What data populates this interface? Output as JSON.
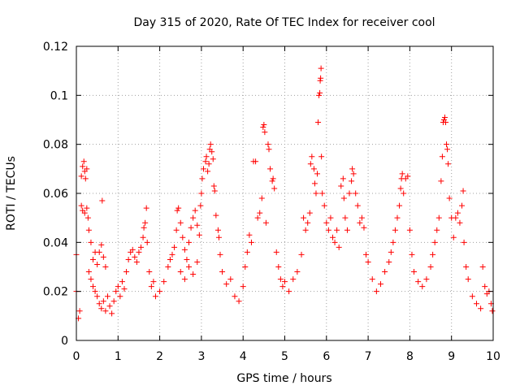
{
  "chart_data": {
    "type": "scatter",
    "title": "Day 315 of 2020, Rate Of TEC Index for receiver cool",
    "xlabel": "GPS time / hours",
    "ylabel": "ROTI / TECUs",
    "xlim": [
      0,
      10
    ],
    "ylim": [
      0,
      0.12
    ],
    "x_ticks": [
      0,
      1,
      2,
      3,
      4,
      5,
      6,
      7,
      8,
      9,
      10
    ],
    "y_ticks": [
      0,
      0.02,
      0.04,
      0.06,
      0.08,
      0.1,
      0.12
    ],
    "x_tick_labels": [
      "0",
      "1",
      "2",
      "3",
      "4",
      "5",
      "6",
      "7",
      "8",
      "9",
      "10"
    ],
    "y_tick_labels": [
      "0",
      "0.02",
      "0.04",
      "0.06",
      "0.08",
      "0.1",
      "0.12"
    ],
    "grid": true,
    "marker": "+",
    "series_color": "#ff0000",
    "series": [
      {
        "name": "ROTI",
        "points": [
          [
            0.0,
            0.035
          ],
          [
            0.0,
            0.02
          ],
          [
            0.05,
            0.009
          ],
          [
            0.08,
            0.012
          ],
          [
            0.12,
            0.067
          ],
          [
            0.15,
            0.071
          ],
          [
            0.18,
            0.073
          ],
          [
            0.2,
            0.069
          ],
          [
            0.22,
            0.066
          ],
          [
            0.25,
            0.07
          ],
          [
            0.12,
            0.055
          ],
          [
            0.15,
            0.053
          ],
          [
            0.2,
            0.052
          ],
          [
            0.25,
            0.054
          ],
          [
            0.28,
            0.05
          ],
          [
            0.3,
            0.045
          ],
          [
            0.35,
            0.04
          ],
          [
            0.4,
            0.033
          ],
          [
            0.45,
            0.036
          ],
          [
            0.5,
            0.031
          ],
          [
            0.3,
            0.028
          ],
          [
            0.35,
            0.025
          ],
          [
            0.4,
            0.022
          ],
          [
            0.45,
            0.02
          ],
          [
            0.5,
            0.018
          ],
          [
            0.55,
            0.036
          ],
          [
            0.6,
            0.039
          ],
          [
            0.62,
            0.057
          ],
          [
            0.65,
            0.034
          ],
          [
            0.7,
            0.03
          ],
          [
            0.55,
            0.015
          ],
          [
            0.6,
            0.013
          ],
          [
            0.65,
            0.016
          ],
          [
            0.7,
            0.012
          ],
          [
            0.75,
            0.018
          ],
          [
            0.8,
            0.014
          ],
          [
            0.85,
            0.011
          ],
          [
            0.9,
            0.016
          ],
          [
            0.95,
            0.02
          ],
          [
            1.0,
            0.022
          ],
          [
            1.05,
            0.018
          ],
          [
            1.1,
            0.024
          ],
          [
            1.15,
            0.021
          ],
          [
            1.2,
            0.028
          ],
          [
            1.25,
            0.033
          ],
          [
            1.3,
            0.036
          ],
          [
            1.35,
            0.037
          ],
          [
            1.4,
            0.034
          ],
          [
            1.45,
            0.032
          ],
          [
            1.5,
            0.036
          ],
          [
            1.55,
            0.038
          ],
          [
            1.6,
            0.042
          ],
          [
            1.62,
            0.046
          ],
          [
            1.65,
            0.048
          ],
          [
            1.7,
            0.04
          ],
          [
            1.68,
            0.054
          ],
          [
            1.75,
            0.028
          ],
          [
            1.8,
            0.022
          ],
          [
            1.85,
            0.024
          ],
          [
            1.9,
            0.018
          ],
          [
            2.0,
            0.02
          ],
          [
            2.1,
            0.024
          ],
          [
            2.2,
            0.03
          ],
          [
            2.25,
            0.033
          ],
          [
            2.3,
            0.035
          ],
          [
            2.35,
            0.038
          ],
          [
            2.4,
            0.045
          ],
          [
            2.42,
            0.053
          ],
          [
            2.45,
            0.054
          ],
          [
            2.5,
            0.048
          ],
          [
            2.55,
            0.042
          ],
          [
            2.6,
            0.037
          ],
          [
            2.65,
            0.033
          ],
          [
            2.7,
            0.04
          ],
          [
            2.75,
            0.046
          ],
          [
            2.8,
            0.05
          ],
          [
            2.85,
            0.053
          ],
          [
            2.9,
            0.047
          ],
          [
            2.95,
            0.043
          ],
          [
            2.98,
            0.055
          ],
          [
            2.5,
            0.028
          ],
          [
            2.6,
            0.025
          ],
          [
            2.7,
            0.03
          ],
          [
            2.8,
            0.027
          ],
          [
            2.9,
            0.032
          ],
          [
            3.0,
            0.06
          ],
          [
            3.02,
            0.066
          ],
          [
            3.05,
            0.07
          ],
          [
            3.1,
            0.073
          ],
          [
            3.12,
            0.075
          ],
          [
            3.15,
            0.069
          ],
          [
            3.18,
            0.072
          ],
          [
            3.2,
            0.078
          ],
          [
            3.22,
            0.08
          ],
          [
            3.25,
            0.077
          ],
          [
            3.28,
            0.074
          ],
          [
            3.3,
            0.063
          ],
          [
            3.32,
            0.061
          ],
          [
            3.35,
            0.051
          ],
          [
            3.4,
            0.045
          ],
          [
            3.42,
            0.042
          ],
          [
            3.45,
            0.035
          ],
          [
            3.5,
            0.028
          ],
          [
            3.6,
            0.023
          ],
          [
            3.7,
            0.025
          ],
          [
            3.8,
            0.018
          ],
          [
            3.9,
            0.016
          ],
          [
            4.0,
            0.022
          ],
          [
            4.05,
            0.03
          ],
          [
            4.1,
            0.036
          ],
          [
            4.15,
            0.043
          ],
          [
            4.2,
            0.04
          ],
          [
            4.25,
            0.073
          ],
          [
            4.3,
            0.073
          ],
          [
            4.35,
            0.05
          ],
          [
            4.4,
            0.052
          ],
          [
            4.45,
            0.058
          ],
          [
            4.48,
            0.087
          ],
          [
            4.5,
            0.088
          ],
          [
            4.52,
            0.085
          ],
          [
            4.55,
            0.048
          ],
          [
            4.6,
            0.08
          ],
          [
            4.62,
            0.078
          ],
          [
            4.65,
            0.07
          ],
          [
            4.7,
            0.065
          ],
          [
            4.72,
            0.066
          ],
          [
            4.75,
            0.062
          ],
          [
            4.8,
            0.036
          ],
          [
            4.85,
            0.03
          ],
          [
            4.9,
            0.025
          ],
          [
            4.95,
            0.022
          ],
          [
            5.0,
            0.024
          ],
          [
            5.1,
            0.02
          ],
          [
            5.2,
            0.025
          ],
          [
            5.3,
            0.028
          ],
          [
            5.4,
            0.035
          ],
          [
            5.45,
            0.05
          ],
          [
            5.5,
            0.045
          ],
          [
            5.55,
            0.048
          ],
          [
            5.6,
            0.052
          ],
          [
            5.62,
            0.072
          ],
          [
            5.65,
            0.075
          ],
          [
            5.7,
            0.07
          ],
          [
            5.72,
            0.064
          ],
          [
            5.75,
            0.06
          ],
          [
            5.78,
            0.068
          ],
          [
            5.8,
            0.089
          ],
          [
            5.82,
            0.1
          ],
          [
            5.84,
            0.101
          ],
          [
            5.85,
            0.106
          ],
          [
            5.86,
            0.107
          ],
          [
            5.87,
            0.111
          ],
          [
            5.88,
            0.075
          ],
          [
            5.9,
            0.06
          ],
          [
            5.95,
            0.055
          ],
          [
            6.0,
            0.048
          ],
          [
            6.05,
            0.045
          ],
          [
            6.1,
            0.05
          ],
          [
            6.15,
            0.042
          ],
          [
            6.2,
            0.04
          ],
          [
            6.25,
            0.045
          ],
          [
            6.3,
            0.038
          ],
          [
            6.35,
            0.063
          ],
          [
            6.4,
            0.066
          ],
          [
            6.42,
            0.058
          ],
          [
            6.45,
            0.05
          ],
          [
            6.5,
            0.045
          ],
          [
            6.55,
            0.06
          ],
          [
            6.6,
            0.065
          ],
          [
            6.62,
            0.07
          ],
          [
            6.65,
            0.068
          ],
          [
            6.7,
            0.06
          ],
          [
            6.75,
            0.055
          ],
          [
            6.8,
            0.048
          ],
          [
            6.85,
            0.05
          ],
          [
            6.9,
            0.046
          ],
          [
            6.95,
            0.035
          ],
          [
            7.0,
            0.032
          ],
          [
            7.1,
            0.025
          ],
          [
            7.2,
            0.02
          ],
          [
            7.3,
            0.023
          ],
          [
            7.4,
            0.028
          ],
          [
            7.5,
            0.032
          ],
          [
            7.55,
            0.036
          ],
          [
            7.6,
            0.04
          ],
          [
            7.65,
            0.045
          ],
          [
            7.7,
            0.05
          ],
          [
            7.75,
            0.055
          ],
          [
            7.78,
            0.062
          ],
          [
            7.8,
            0.066
          ],
          [
            7.82,
            0.068
          ],
          [
            7.85,
            0.06
          ],
          [
            7.9,
            0.066
          ],
          [
            7.95,
            0.067
          ],
          [
            8.0,
            0.045
          ],
          [
            8.05,
            0.035
          ],
          [
            8.1,
            0.028
          ],
          [
            8.2,
            0.024
          ],
          [
            8.3,
            0.022
          ],
          [
            8.4,
            0.025
          ],
          [
            8.5,
            0.03
          ],
          [
            8.55,
            0.035
          ],
          [
            8.6,
            0.04
          ],
          [
            8.65,
            0.045
          ],
          [
            8.7,
            0.05
          ],
          [
            8.75,
            0.065
          ],
          [
            8.78,
            0.075
          ],
          [
            8.8,
            0.089
          ],
          [
            8.82,
            0.09
          ],
          [
            8.84,
            0.091
          ],
          [
            8.86,
            0.089
          ],
          [
            8.88,
            0.08
          ],
          [
            8.9,
            0.078
          ],
          [
            8.92,
            0.072
          ],
          [
            8.95,
            0.058
          ],
          [
            9.0,
            0.05
          ],
          [
            9.05,
            0.042
          ],
          [
            9.1,
            0.05
          ],
          [
            9.15,
            0.052
          ],
          [
            9.2,
            0.048
          ],
          [
            9.25,
            0.055
          ],
          [
            9.28,
            0.061
          ],
          [
            9.3,
            0.04
          ],
          [
            9.35,
            0.03
          ],
          [
            9.4,
            0.025
          ],
          [
            9.5,
            0.018
          ],
          [
            9.6,
            0.015
          ],
          [
            9.7,
            0.013
          ],
          [
            9.75,
            0.03
          ],
          [
            9.8,
            0.022
          ],
          [
            9.85,
            0.019
          ],
          [
            9.9,
            0.02
          ],
          [
            9.95,
            0.015
          ],
          [
            9.98,
            0.012
          ]
        ]
      }
    ]
  }
}
